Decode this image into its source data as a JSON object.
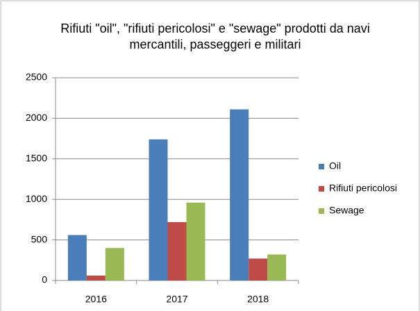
{
  "chart_data": {
    "type": "bar",
    "title": "Rifiuti \"oil\", \"rifiuti pericolosi\" e \"sewage\" prodotti da navi mercantili, passeggeri e militari",
    "categories": [
      "2016",
      "2017",
      "2018"
    ],
    "series": [
      {
        "name": "Oil",
        "color": "#4a7ebb",
        "values": [
          560,
          1740,
          2110
        ]
      },
      {
        "name": "Rifiuti pericolosi",
        "color": "#be4b48",
        "values": [
          60,
          720,
          270
        ]
      },
      {
        "name": "Sewage",
        "color": "#98b954",
        "values": [
          400,
          960,
          320
        ]
      }
    ],
    "ylim": [
      0,
      2500
    ],
    "yticks": [
      0,
      500,
      1000,
      1500,
      2000,
      2500
    ],
    "grid": true,
    "legend": "right"
  }
}
